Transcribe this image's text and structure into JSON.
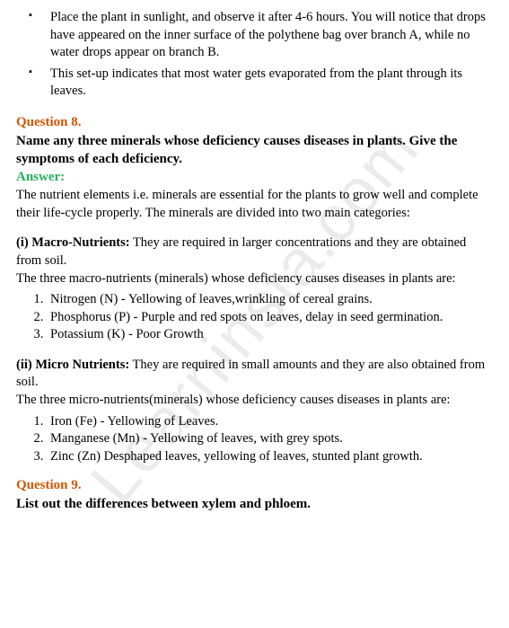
{
  "watermark": "Learninsta.com",
  "intro_bullets": [
    "Place the plant in sunlight, and observe it after 4-6 hours. You will notice that drops have appeared on the inner surface of the polythene bag over branch A, while no water drops appear on branch B.",
    "This set-up indicates that most water gets evaporated from the plant through its leaves."
  ],
  "q8": {
    "label": "Question 8.",
    "text": "Name any three minerals whose deficiency causes diseases in plants. Give the symptoms of each deficiency.",
    "answer_label": "Answer:",
    "intro": "The nutrient elements i.e. minerals are essential for the plants to grow well and complete their life-cycle properly. The minerals are divided into two main categories:",
    "macro": {
      "title": "(i) Macro-Nutrients:",
      "desc": " They are required in larger concentrations and they are obtained from soil.",
      "sub": "The three macro-nutrients (minerals) whose deficiency causes diseases in plants are:",
      "items": [
        "Nitrogen (N) - Yellowing of leaves,wrinkling of cereal grains.",
        "Phosphorus (P) - Purple and red spots on leaves, delay in seed germination.",
        "Potassium (K) - Poor Growth"
      ]
    },
    "micro": {
      "title": "(ii) Micro Nutrients:",
      "desc": " They are required in small amounts and they are also obtained from soil.",
      "sub": "The three micro-nutrients(minerals) whose deficiency causes diseases in plants are:",
      "items": [
        "Iron (Fe) - Yellowing of Leaves.",
        "Manganese (Mn) - Yellowing of leaves, with grey spots.",
        "Zinc (Zn) Desphaped leaves, yellowing of leaves, stunted plant growth."
      ]
    }
  },
  "q9": {
    "label": "Question 9.",
    "text": "List out the differences between xylem and phloem."
  },
  "colors": {
    "question": "#d35400",
    "answer": "#27ae60",
    "text": "#000000",
    "background": "#ffffff"
  }
}
